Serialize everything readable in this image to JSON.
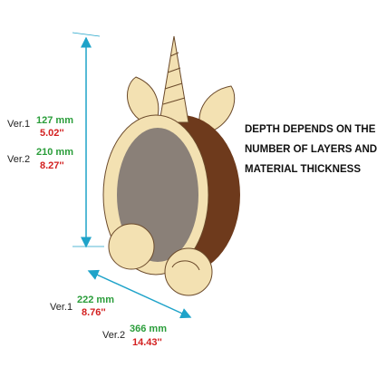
{
  "height": {
    "label": "Ver.1",
    "mm": "127 mm",
    "inch": "5.02''",
    "label2": "Ver.2",
    "mm2": "210 mm",
    "inch2": "8.27''"
  },
  "width": {
    "label": "Ver.1",
    "mm": "222 mm",
    "inch": "8.76''",
    "label2": "Ver.2",
    "mm2": "366 mm",
    "inch2": "14.43''"
  },
  "note": {
    "lines": [
      "DEPTH DEPENDS ON THE",
      "NUMBER OF LAYERS AND",
      "MATERIAL THICKNESS"
    ]
  }
}
